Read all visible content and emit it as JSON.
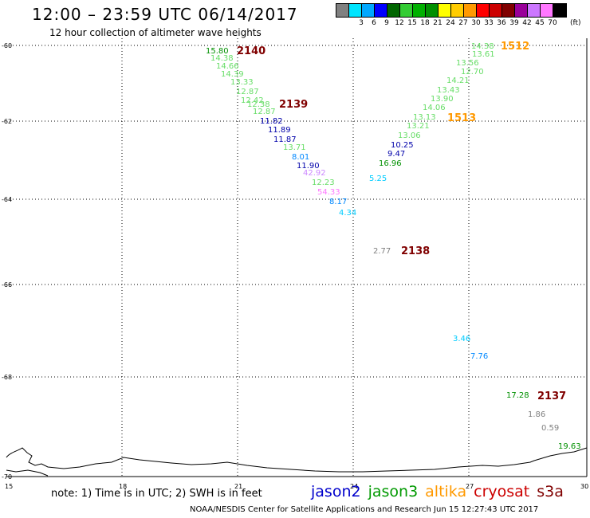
{
  "header": {
    "title": "12:00 – 23:59 UTC 06/14/2017",
    "subtitle": "12 hour collection of altimeter wave heights"
  },
  "legend": {
    "unit": "(ft)",
    "swatches": [
      {
        "color": "#808080",
        "label": ""
      },
      {
        "color": "#00e5ff",
        "label": "3"
      },
      {
        "color": "#00a8ff",
        "label": "6"
      },
      {
        "color": "#0000ff",
        "label": "9"
      },
      {
        "color": "#006600",
        "label": "12"
      },
      {
        "color": "#33cc33",
        "label": "15"
      },
      {
        "color": "#00b000",
        "label": "18"
      },
      {
        "color": "#009000",
        "label": "21"
      },
      {
        "color": "#ffff00",
        "label": "24"
      },
      {
        "color": "#ffcc00",
        "label": "27"
      },
      {
        "color": "#ff9900",
        "label": "30"
      },
      {
        "color": "#ff0000",
        "label": "33"
      },
      {
        "color": "#cc0000",
        "label": "36"
      },
      {
        "color": "#800000",
        "label": "39"
      },
      {
        "color": "#990099",
        "label": "42"
      },
      {
        "color": "#cc77ff",
        "label": "45"
      },
      {
        "color": "#ff77ff",
        "label": "70"
      },
      {
        "color": "#000000",
        "label": ""
      }
    ]
  },
  "axes": {
    "lat_labels": [
      "-60",
      "-62",
      "-64",
      "-66",
      "-68",
      "-70"
    ],
    "lon_labels": [
      "15",
      "18",
      "21",
      "24",
      "27",
      "30"
    ]
  },
  "pass_labels": [
    {
      "text": "2140",
      "color": "#800000"
    },
    {
      "text": "2139",
      "color": "#800000"
    },
    {
      "text": "2138",
      "color": "#800000"
    },
    {
      "text": "2137",
      "color": "#800000"
    },
    {
      "text": "1512",
      "color": "#ff9900"
    },
    {
      "text": "1513",
      "color": "#ff9900"
    }
  ],
  "wave_heights": [
    {
      "text": "15.80",
      "color": "#009000"
    },
    {
      "text": "14.38",
      "color": "#66dd66"
    },
    {
      "text": "14.66",
      "color": "#66dd66"
    },
    {
      "text": "14.39",
      "color": "#66dd66"
    },
    {
      "text": "13.33",
      "color": "#66dd66"
    },
    {
      "text": "12.87",
      "color": "#66dd66"
    },
    {
      "text": "12.42",
      "color": "#66dd66"
    },
    {
      "text": "12.38",
      "color": "#66dd66"
    },
    {
      "text": "12.87",
      "color": "#66dd66"
    },
    {
      "text": "11.82",
      "color": "#0000aa"
    },
    {
      "text": "11.89",
      "color": "#0000aa"
    },
    {
      "text": "11.87",
      "color": "#0000aa"
    },
    {
      "text": "13.71",
      "color": "#66dd66"
    },
    {
      "text": "8.01",
      "color": "#0088ff"
    },
    {
      "text": "11.90",
      "color": "#0000aa"
    },
    {
      "text": "42.92",
      "color": "#cc88ff"
    },
    {
      "text": "12.23",
      "color": "#66dd66"
    },
    {
      "text": "54.33",
      "color": "#ff77ff"
    },
    {
      "text": "8.17",
      "color": "#0088ff"
    },
    {
      "text": "4.34",
      "color": "#00ccff"
    },
    {
      "text": "14.38",
      "color": "#66dd66"
    },
    {
      "text": "13.61",
      "color": "#66dd66"
    },
    {
      "text": "13.56",
      "color": "#66dd66"
    },
    {
      "text": "12.70",
      "color": "#66dd66"
    },
    {
      "text": "14.21",
      "color": "#66dd66"
    },
    {
      "text": "13.43",
      "color": "#66dd66"
    },
    {
      "text": "13.90",
      "color": "#66dd66"
    },
    {
      "text": "14.06",
      "color": "#66dd66"
    },
    {
      "text": "13.13",
      "color": "#66dd66"
    },
    {
      "text": "13.21",
      "color": "#66dd66"
    },
    {
      "text": "13.06",
      "color": "#66dd66"
    },
    {
      "text": "10.25",
      "color": "#0000aa"
    },
    {
      "text": "9.47",
      "color": "#0000aa"
    },
    {
      "text": "16.96",
      "color": "#009000"
    },
    {
      "text": "5.25",
      "color": "#00ccff"
    },
    {
      "text": "2.77",
      "color": "#808080"
    },
    {
      "text": "3.46",
      "color": "#00ccff"
    },
    {
      "text": "7.76",
      "color": "#0088ff"
    },
    {
      "text": "17.28",
      "color": "#009000"
    },
    {
      "text": "1.86",
      "color": "#808080"
    },
    {
      "text": "0.59",
      "color": "#808080"
    },
    {
      "text": "19.63",
      "color": "#009000"
    }
  ],
  "footer": {
    "note": "note: 1) Time is in UTC; 2) SWH is in feet",
    "satellites": [
      {
        "name": "jason2",
        "color": "#0000cc"
      },
      {
        "name": "jason3",
        "color": "#009900"
      },
      {
        "name": "altika",
        "color": "#ff9900"
      },
      {
        "name": "cryosat",
        "color": "#cc0000"
      },
      {
        "name": "s3a",
        "color": "#800000"
      }
    ],
    "credit": "NOAA/NESDIS Center for Satellite Applications and Research    Jun 15 12:27:43 UTC 2017"
  }
}
